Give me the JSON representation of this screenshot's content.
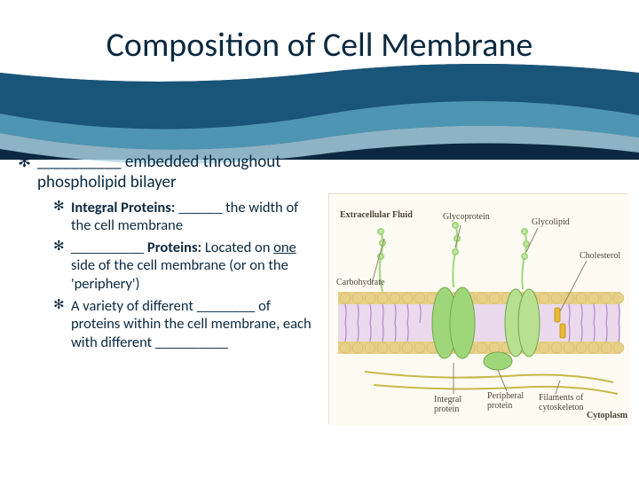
{
  "title": "Composition of Cell Membrane",
  "colors": {
    "header_bg": "#0a2940",
    "text": "#0a2940",
    "wave1": "#1b5a80",
    "wave2": "#5aa8c8",
    "wave3": "#aed6e6",
    "diagram_bg": "#fdfbf2",
    "diagram_border": "#e4dcc8",
    "lipid_head": "#e8d088",
    "lipid_tail": "#c49ed8",
    "protein_green": "#9fd67a",
    "cholesterol": "#e8b838"
  },
  "main_bullet": "__________ embedded throughout phospholipid bilayer",
  "sub_bullets": [
    "<b>Integral Proteins:</b> ______ the width of the cell membrane",
    "__________ <b>Proteins:</b> Located on <u>one</u> side of the cell membrane (or on the 'periphery')",
    "A variety of different ________ of proteins within the cell membrane, each with different __________"
  ],
  "diagram_labels": {
    "extracellular": "Extracellular Fluid",
    "glycoprotein": "Glycoprotein",
    "glycolipid": "Glycolipid",
    "carbohydrate": "Carbohydrate",
    "cholesterol": "Cholesterol",
    "integral": "Integral protein",
    "peripheral": "Peripheral protein",
    "filaments": "Filaments of cytoskeleton",
    "cytoplasm": "Cytoplasm"
  }
}
